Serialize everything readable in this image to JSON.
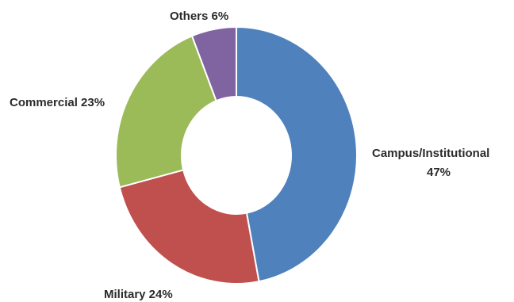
{
  "chart_data": {
    "type": "pie",
    "variant": "donut",
    "start": "top, clockwise",
    "slices": [
      {
        "label": "Campus/Institutional",
        "value": 47,
        "value_label": "47%",
        "color": "#4f81bd"
      },
      {
        "label": "Military",
        "value": 24,
        "value_label": "24%",
        "color": "#c0504d"
      },
      {
        "label": "Commercial",
        "value": 23,
        "value_label": "23%",
        "color": "#9bbb59"
      },
      {
        "label": "Others",
        "value": 6,
        "value_label": "6%",
        "color": "#8064a2"
      }
    ],
    "slice_border_color": "#ffffff",
    "text_color": "#2b2b2b"
  }
}
